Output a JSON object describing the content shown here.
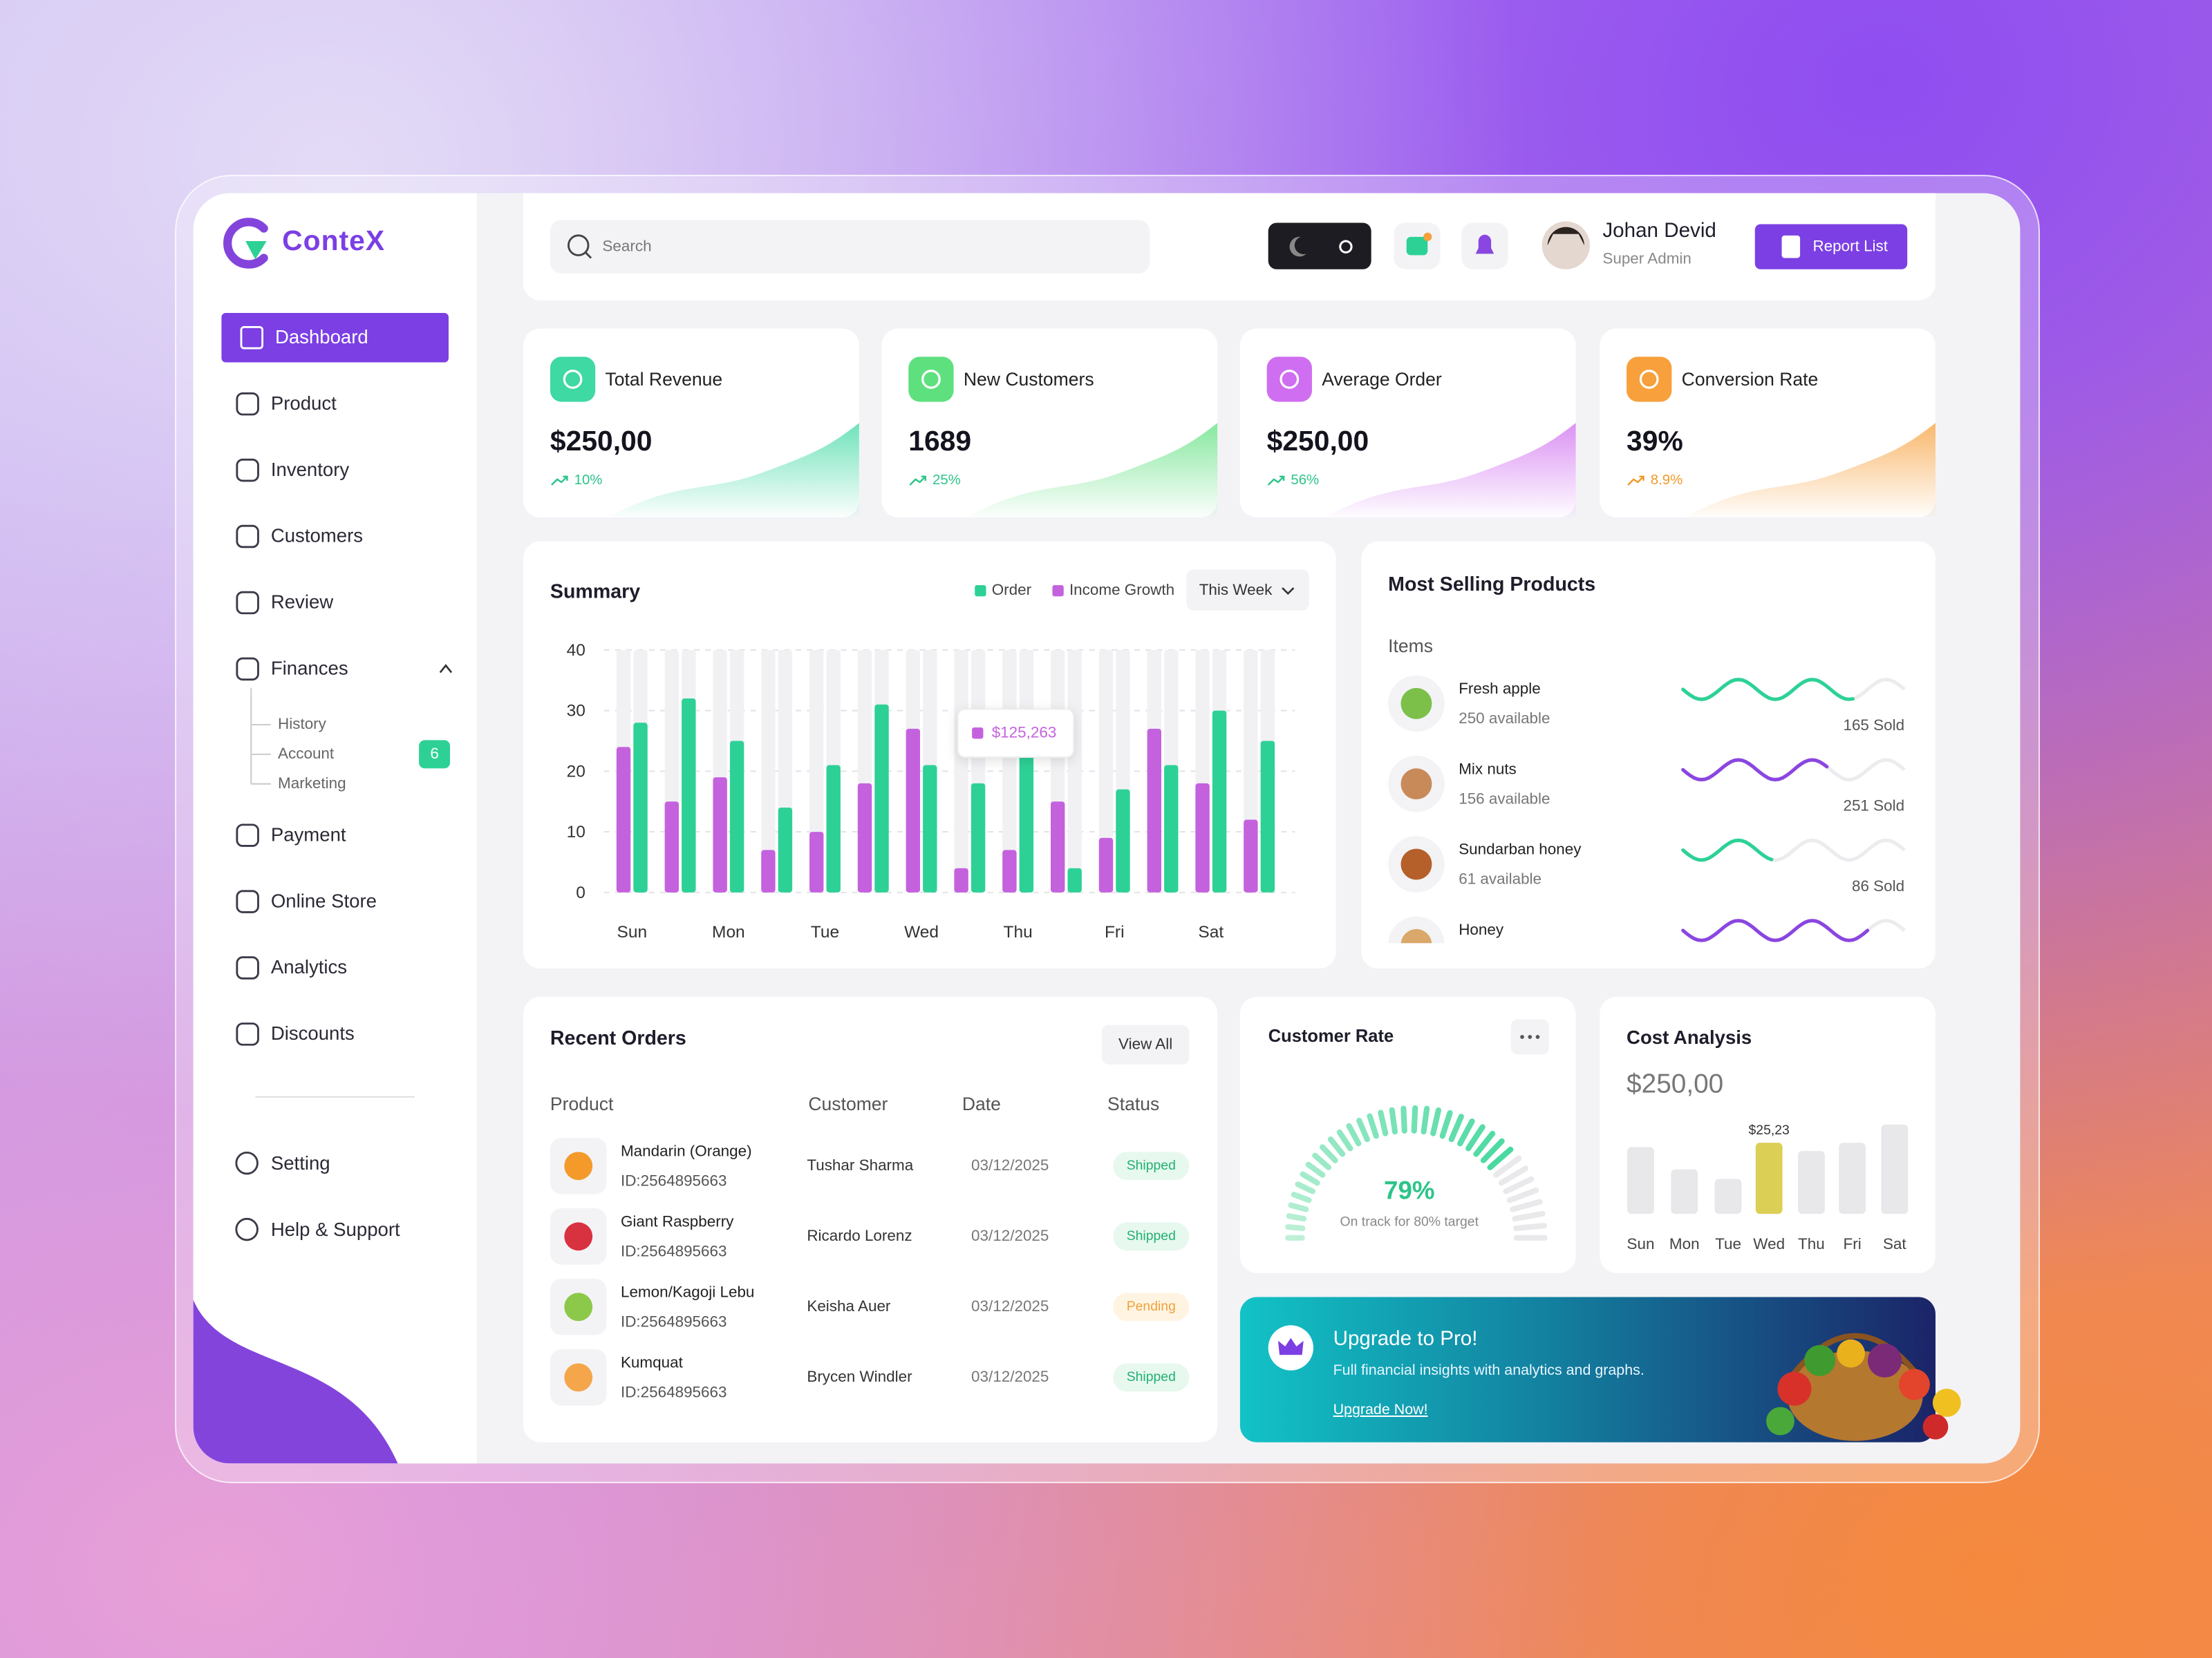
{
  "brand": "ConteX",
  "sidebar": {
    "menu": [
      "Dashboard",
      "Product",
      "Inventory",
      "Customers",
      "Review",
      "Finances",
      "Payment",
      "Online Store",
      "Analytics",
      "Discounts"
    ],
    "finances_submenu": [
      "History",
      "Account",
      "Marketing"
    ],
    "account_badge": 6,
    "footer": [
      "Setting",
      "Help & Support"
    ]
  },
  "header": {
    "search_placeholder": "Search",
    "user_name": "Johan Devid",
    "user_role": "Super Admin",
    "report_button": "Report List"
  },
  "stats": [
    {
      "label": "Total Revenue",
      "value": "$250,00",
      "change": "10%",
      "color": "#3fd9a3"
    },
    {
      "label": "New Customers",
      "value": "1689",
      "change": "25%",
      "color": "#5fe07f"
    },
    {
      "label": "Average Order",
      "value": "$250,00",
      "change": "56%",
      "color": "#cf6ef0"
    },
    {
      "label": "Conversion Rate",
      "value": "39%",
      "change": "8.9%",
      "color": "#f7a03c"
    }
  ],
  "summary": {
    "title": "Summary",
    "period": "This Week",
    "tooltip": "$125,263",
    "categories": [
      "Sun",
      null,
      "Mon",
      null,
      "Tue",
      null,
      "Wed",
      null,
      "Thu",
      null,
      "Fri",
      null,
      "Sat",
      null
    ],
    "series": [
      {
        "name": "Order",
        "color": "#2dd196",
        "values": [
          28,
          32,
          25,
          14,
          21,
          31,
          21,
          18,
          29,
          4,
          17,
          21,
          30,
          25
        ]
      },
      {
        "name": "Income Growth",
        "color": "#c462de",
        "values": [
          24,
          15,
          19,
          7,
          10,
          18,
          27,
          4,
          7,
          15,
          9,
          27,
          18,
          12
        ]
      }
    ],
    "ylim": [
      0,
      40
    ],
    "yticks": [
      0,
      10,
      20,
      30,
      40
    ]
  },
  "most_selling": {
    "title": "Most Selling Products",
    "column": "Items",
    "items": [
      {
        "name": "Fresh apple",
        "available": "250 available",
        "sold": "165 Sold",
        "color": "#2dd196"
      },
      {
        "name": "Mix nuts",
        "available": "156 available",
        "sold": "251 Sold",
        "color": "#8a46e0"
      },
      {
        "name": "Sundarban honey",
        "available": "61 available",
        "sold": "86 Sold",
        "color": "#2dd196"
      },
      {
        "name": "Honey",
        "color": "#8a46e0"
      }
    ]
  },
  "recent_orders": {
    "title": "Recent Orders",
    "view_all": "View All",
    "columns": [
      "Product",
      "Customer",
      "Date",
      "Status"
    ],
    "rows": [
      {
        "product": "Mandarin (Orange)",
        "id": "ID:2564895663",
        "customer": "Tushar Sharma",
        "date": "03/12/2025",
        "status": "Shipped"
      },
      {
        "product": "Giant Raspberry",
        "id": "ID:2564895663",
        "customer": "Ricardo Lorenz",
        "date": "03/12/2025",
        "status": "Shipped"
      },
      {
        "product": "Lemon/Kagoji Lebu",
        "id": "ID:2564895663",
        "customer": "Keisha Auer",
        "date": "03/12/2025",
        "status": "Pending"
      },
      {
        "product": "Kumquat",
        "id": "ID:2564895663",
        "customer": "Brycen Windler",
        "date": "03/12/2025",
        "status": "Shipped"
      }
    ]
  },
  "customer_rate": {
    "title": "Customer Rate",
    "value": 79,
    "value_label": "79%",
    "caption": "On track for 80% target"
  },
  "cost_analysis": {
    "title": "Cost Analysis",
    "total": "$250,00",
    "categories": [
      "Sun",
      "Mon",
      "Tue",
      "Wed",
      "Thu",
      "Fri",
      "Sat"
    ],
    "values": [
      23.7,
      15.8,
      12.4,
      25.23,
      22.3,
      25.2,
      31.7
    ],
    "value_labels": [
      null,
      null,
      null,
      "$25,23",
      null,
      null,
      null
    ]
  },
  "upgrade": {
    "title": "Upgrade to Pro!",
    "text": "Full financial insights with analytics and graphs.",
    "link": "Upgrade Now!"
  }
}
